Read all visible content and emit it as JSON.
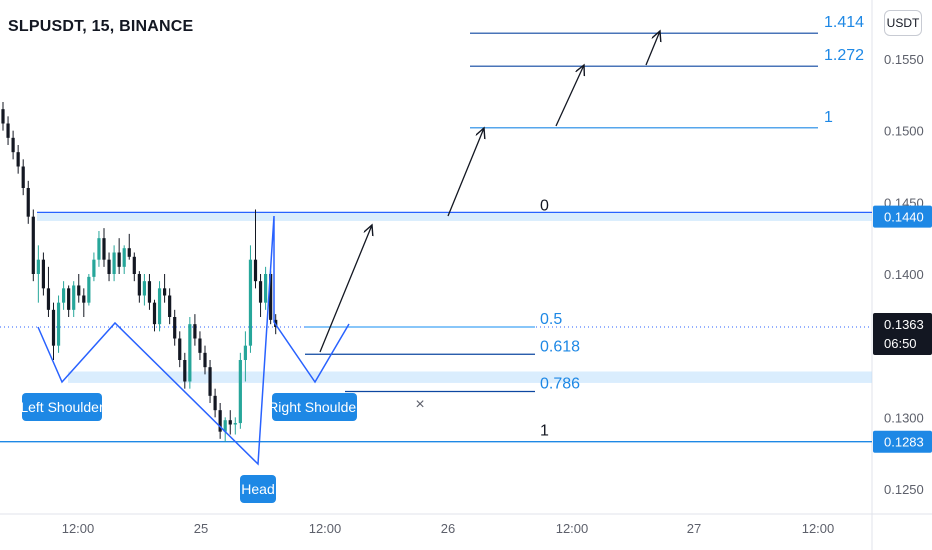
{
  "header": {
    "title": "SLPUSDT, 15, BINANCE",
    "unit": "USDT"
  },
  "colors": {
    "up": "#26a69a",
    "down": "#131722",
    "pattern": "#2962ff",
    "blue_line": "#1e88e5",
    "label_bg": "#1e88e5",
    "text": "#131722",
    "axis": "#5d606b"
  },
  "chart_data": {
    "type": "candlestick",
    "ylim": [
      0.1225,
      0.161
    ],
    "y_ticks": [
      "0.1250",
      "0.1300",
      "0.1350",
      "0.1400",
      "0.1450",
      "0.1500",
      "0.1550"
    ],
    "x_ticks": [
      "12:00",
      "25",
      "12:00",
      "26",
      "12:00",
      "27",
      "12:00"
    ],
    "price_tags": [
      {
        "label": "0.1440",
        "value": 0.144
      },
      {
        "label": "0.1283",
        "value": 0.1283
      },
      {
        "label": "0.1363",
        "sub": "06:50",
        "value": 0.1363
      }
    ],
    "fib_levels": [
      {
        "label": "1.414",
        "value": 0.1568
      },
      {
        "label": "1.272",
        "value": 0.1545
      },
      {
        "label": "1",
        "value": 0.1502
      },
      {
        "label": "0",
        "value": 0.144
      },
      {
        "label": "0.5",
        "value": 0.1363
      },
      {
        "label": "0.618",
        "value": 0.1344
      },
      {
        "label": "0.786",
        "value": 0.1318
      },
      {
        "label": "1",
        "value": 0.1283
      }
    ],
    "annotations": [
      "Left Shoulder",
      "Head",
      "Right Shoulder"
    ],
    "candles": [
      [
        0.1515,
        0.152,
        0.15,
        0.1505
      ],
      [
        0.1505,
        0.151,
        0.149,
        0.1495
      ],
      [
        0.1495,
        0.15,
        0.148,
        0.1485
      ],
      [
        0.1485,
        0.149,
        0.147,
        0.1475
      ],
      [
        0.1475,
        0.148,
        0.1455,
        0.146
      ],
      [
        0.146,
        0.1465,
        0.1435,
        0.144
      ],
      [
        0.144,
        0.1445,
        0.1395,
        0.14
      ],
      [
        0.14,
        0.142,
        0.138,
        0.141
      ],
      [
        0.141,
        0.1415,
        0.1385,
        0.139
      ],
      [
        0.139,
        0.1405,
        0.137,
        0.1375
      ],
      [
        0.1375,
        0.138,
        0.134,
        0.135
      ],
      [
        0.135,
        0.1385,
        0.1345,
        0.138
      ],
      [
        0.138,
        0.1395,
        0.1375,
        0.139
      ],
      [
        0.139,
        0.1392,
        0.137,
        0.1375
      ],
      [
        0.1375,
        0.1395,
        0.137,
        0.1392
      ],
      [
        0.1392,
        0.14,
        0.138,
        0.1385
      ],
      [
        0.1385,
        0.139,
        0.137,
        0.138
      ],
      [
        0.138,
        0.14,
        0.1378,
        0.1398
      ],
      [
        0.1398,
        0.1415,
        0.1395,
        0.141
      ],
      [
        0.141,
        0.143,
        0.1405,
        0.1425
      ],
      [
        0.1425,
        0.1432,
        0.1405,
        0.141
      ],
      [
        0.141,
        0.1415,
        0.1395,
        0.14
      ],
      [
        0.14,
        0.142,
        0.1395,
        0.1415
      ],
      [
        0.1415,
        0.1425,
        0.14,
        0.1405
      ],
      [
        0.1405,
        0.142,
        0.14,
        0.1418
      ],
      [
        0.1418,
        0.1428,
        0.141,
        0.1412
      ],
      [
        0.1412,
        0.1415,
        0.1395,
        0.14
      ],
      [
        0.14,
        0.1402,
        0.138,
        0.1385
      ],
      [
        0.1385,
        0.14,
        0.1378,
        0.1395
      ],
      [
        0.1395,
        0.14,
        0.1375,
        0.138
      ],
      [
        0.138,
        0.1382,
        0.136,
        0.1365
      ],
      [
        0.1365,
        0.1395,
        0.136,
        0.139
      ],
      [
        0.139,
        0.14,
        0.138,
        0.1385
      ],
      [
        0.1385,
        0.139,
        0.1365,
        0.137
      ],
      [
        0.137,
        0.1375,
        0.135,
        0.1355
      ],
      [
        0.1355,
        0.136,
        0.1335,
        0.134
      ],
      [
        0.134,
        0.1345,
        0.132,
        0.1325
      ],
      [
        0.1325,
        0.137,
        0.132,
        0.1365
      ],
      [
        0.1365,
        0.1372,
        0.135,
        0.1355
      ],
      [
        0.1355,
        0.136,
        0.134,
        0.1345
      ],
      [
        0.1345,
        0.135,
        0.133,
        0.1335
      ],
      [
        0.1335,
        0.134,
        0.131,
        0.1315
      ],
      [
        0.1315,
        0.132,
        0.13,
        0.1305
      ],
      [
        0.1305,
        0.131,
        0.1285,
        0.129
      ],
      [
        0.129,
        0.13,
        0.1283,
        0.1298
      ],
      [
        0.1298,
        0.1305,
        0.1288,
        0.1295
      ],
      [
        0.1295,
        0.13,
        0.1288,
        0.1296
      ],
      [
        0.1296,
        0.1345,
        0.1292,
        0.134
      ],
      [
        0.134,
        0.136,
        0.1325,
        0.135
      ],
      [
        0.135,
        0.142,
        0.1345,
        0.141
      ],
      [
        0.141,
        0.1445,
        0.139,
        0.1395
      ],
      [
        0.1395,
        0.14,
        0.137,
        0.138
      ],
      [
        0.138,
        0.1405,
        0.1375,
        0.14
      ],
      [
        0.14,
        0.1402,
        0.1365,
        0.1368
      ],
      [
        0.1368,
        0.1372,
        0.1358,
        0.1363
      ]
    ]
  }
}
